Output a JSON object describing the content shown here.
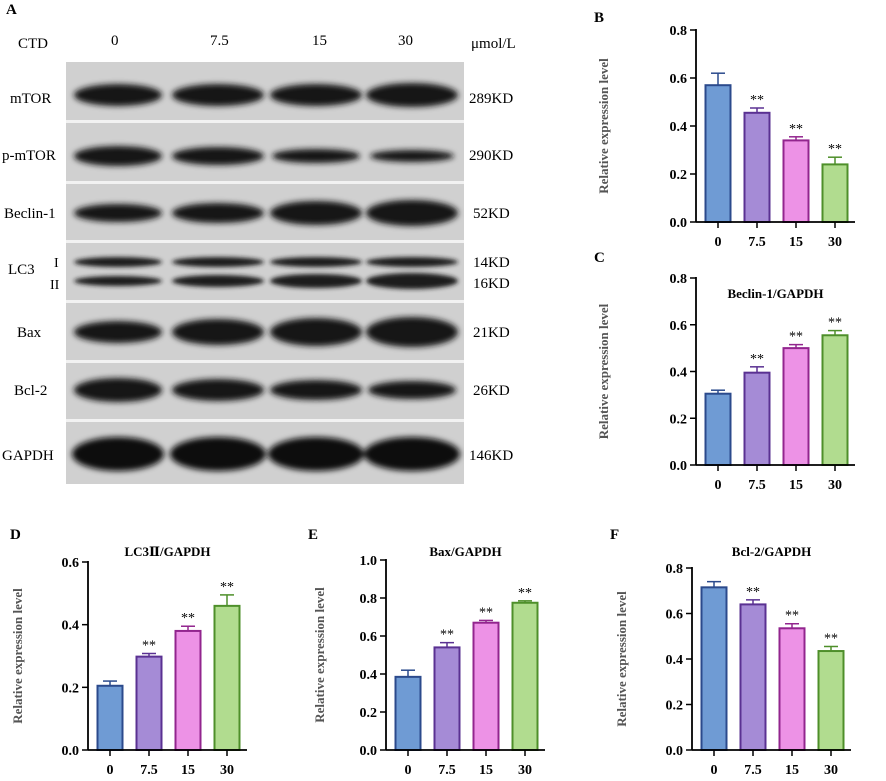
{
  "panel_a": {
    "letter": "A",
    "ctd_label": "CTD",
    "unit": "μmol/L",
    "doses": [
      "0",
      "7.5",
      "15",
      "30"
    ],
    "proteins": [
      {
        "name": "mTOR",
        "kd": "289KD"
      },
      {
        "name": "p-mTOR",
        "kd": "290KD"
      },
      {
        "name": "Beclin-1",
        "kd": "52KD"
      },
      {
        "name": "LC3",
        "kd": "14KD",
        "kd2": "16KD",
        "band1": "I",
        "band2": "II"
      },
      {
        "name": "Bax",
        "kd": "21KD"
      },
      {
        "name": "Bcl-2",
        "kd": "26KD"
      },
      {
        "name": "GAPDH",
        "kd": "146KD"
      }
    ]
  },
  "colors": {
    "fills": [
      "#6f9bd4",
      "#a58bd6",
      "#ed92e6",
      "#b1dc8f"
    ],
    "strokes": [
      "#2b4a8c",
      "#5a3192",
      "#92258e",
      "#4e8f2a"
    ],
    "axis": "#000000",
    "blot_bg": "#d3d3d3"
  },
  "chart_data": [
    {
      "letter": "B",
      "type": "bar",
      "title": "",
      "categories": [
        "0",
        "7.5",
        "15",
        "30"
      ],
      "values": [
        0.57,
        0.455,
        0.34,
        0.24
      ],
      "errors": [
        0.05,
        0.02,
        0.015,
        0.03
      ],
      "sig": [
        "",
        "**",
        "**",
        "**"
      ],
      "ylim": [
        0,
        0.8
      ],
      "yticks": [
        "0.0",
        "0.2",
        "0.4",
        "0.6",
        "0.8"
      ],
      "ylabel": "Relative expression level",
      "xlabel": ""
    },
    {
      "letter": "C",
      "type": "bar",
      "title": "Beclin-1/GAPDH",
      "categories": [
        "0",
        "7.5",
        "15",
        "30"
      ],
      "values": [
        0.305,
        0.395,
        0.5,
        0.555
      ],
      "errors": [
        0.015,
        0.025,
        0.015,
        0.02
      ],
      "sig": [
        "",
        "**",
        "**",
        "**"
      ],
      "ylim": [
        0,
        0.8
      ],
      "yticks": [
        "0.0",
        "0.2",
        "0.4",
        "0.6",
        "0.8"
      ],
      "ylabel": "Relative expression level",
      "xlabel": ""
    },
    {
      "letter": "D",
      "type": "bar",
      "title": "LC3Ⅱ/GAPDH",
      "categories": [
        "0",
        "7.5",
        "15",
        "30"
      ],
      "values": [
        0.205,
        0.298,
        0.38,
        0.46
      ],
      "errors": [
        0.015,
        0.01,
        0.015,
        0.035
      ],
      "sig": [
        "",
        "**",
        "**",
        "**"
      ],
      "ylim": [
        0,
        0.6
      ],
      "yticks": [
        "0.0",
        "0.2",
        "0.4",
        "0.6"
      ],
      "ylabel": "Relative expression level",
      "xlabel": ""
    },
    {
      "letter": "E",
      "type": "bar",
      "title": "Bax/GAPDH",
      "categories": [
        "0",
        "7.5",
        "15",
        "30"
      ],
      "values": [
        0.385,
        0.54,
        0.67,
        0.775
      ],
      "errors": [
        0.035,
        0.025,
        0.012,
        0.01
      ],
      "sig": [
        "",
        "**",
        "**",
        "**"
      ],
      "ylim": [
        0,
        1.0
      ],
      "yticks": [
        "0.0",
        "0.2",
        "0.4",
        "0.6",
        "0.8",
        "1.0"
      ],
      "ylabel": "Relative expression level",
      "xlabel": ""
    },
    {
      "letter": "F",
      "type": "bar",
      "title": "Bcl-2/GAPDH",
      "categories": [
        "0",
        "7.5",
        "15",
        "30"
      ],
      "values": [
        0.715,
        0.64,
        0.535,
        0.435
      ],
      "errors": [
        0.025,
        0.02,
        0.02,
        0.02
      ],
      "sig": [
        "",
        "**",
        "**",
        "**"
      ],
      "ylim": [
        0,
        0.8
      ],
      "yticks": [
        "0.0",
        "0.2",
        "0.4",
        "0.6",
        "0.8"
      ],
      "ylabel": "Relative expression level",
      "xlabel": ""
    }
  ]
}
